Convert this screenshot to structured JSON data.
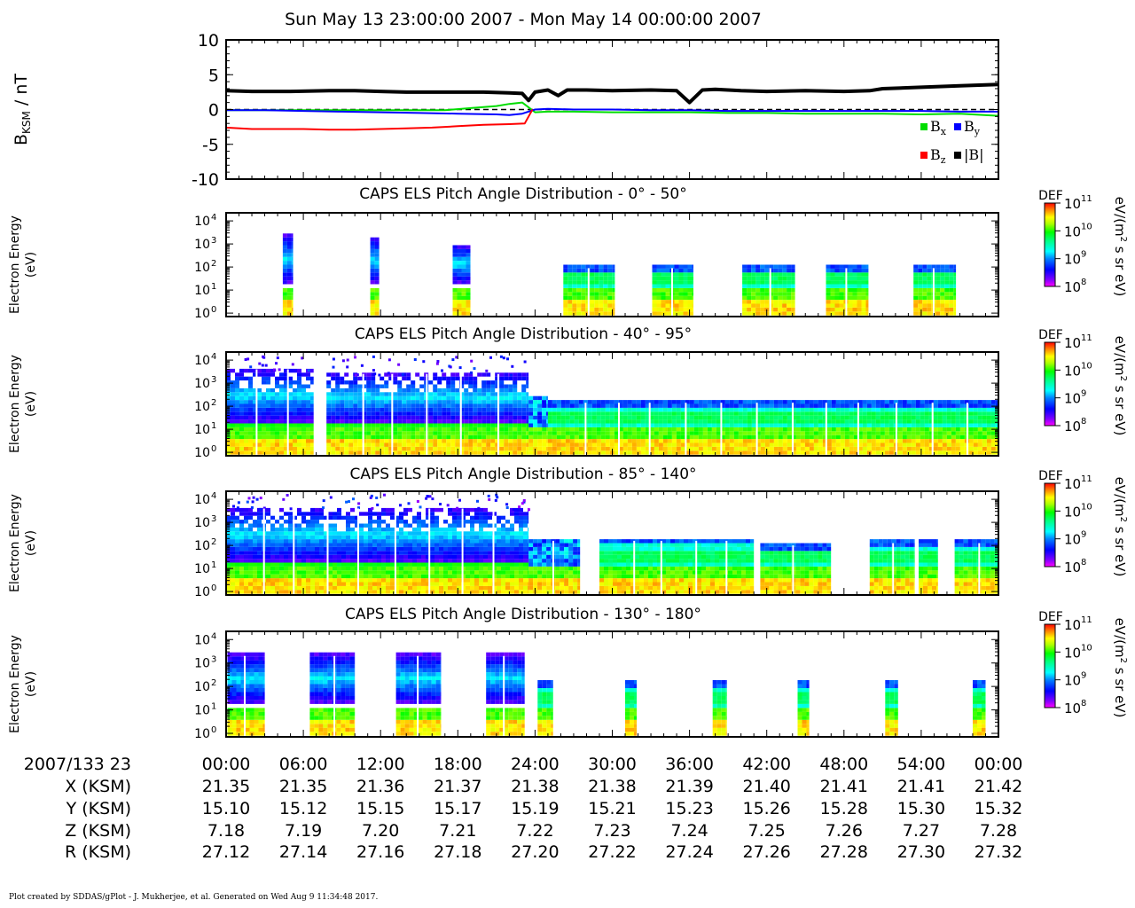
{
  "page_title": "Sun May 13 23:00:00 2007 - Mon May 14 00:00:00 2007",
  "footer": "Plot created by SDDAS/gPlot - J. Mukherjee, et al.  Generated on Wed Aug 9 11:34:48 2017.",
  "chart_data": [
    {
      "type": "line",
      "name": "magnetometer",
      "ylabel_main": "B",
      "ylabel_sub": "KSM",
      "ylabel_unit": " / nT",
      "ylim": [
        -10,
        10
      ],
      "yticks": [
        {
          "v": 10,
          "label": "10"
        },
        {
          "v": 5,
          "label": "5"
        },
        {
          "v": 0,
          "label": "0"
        },
        {
          "v": -5,
          "label": "-5"
        },
        {
          "v": -10,
          "label": "-10"
        }
      ],
      "xlim": [
        0,
        60
      ],
      "zero_line": true,
      "legend": [
        {
          "base": "B",
          "sub": "x",
          "color": "#00dd00"
        },
        {
          "base": "B",
          "sub": "y",
          "color": "#0000ff"
        },
        {
          "base": "B",
          "sub": "z",
          "color": "#ff0000"
        },
        {
          "base": "|B|",
          "sub": "",
          "color": "#000000"
        }
      ],
      "series": [
        {
          "sub": "x",
          "color": "#00dd00",
          "x": [
            0,
            3,
            6,
            9,
            12,
            15,
            17,
            19,
            21,
            22,
            23,
            24,
            25,
            27,
            30,
            33,
            36,
            39,
            42,
            45,
            48,
            51,
            54,
            57,
            60
          ],
          "y": [
            -0.1,
            -0.1,
            -0.1,
            -0.1,
            -0.1,
            -0.1,
            -0.1,
            0.2,
            0.5,
            0.8,
            1.0,
            -0.4,
            -0.3,
            -0.3,
            -0.4,
            -0.4,
            -0.4,
            -0.5,
            -0.5,
            -0.6,
            -0.6,
            -0.6,
            -0.7,
            -0.6,
            -0.9
          ]
        },
        {
          "sub": "y",
          "color": "#0000ff",
          "x": [
            0,
            3,
            6,
            9,
            12,
            15,
            18,
            21,
            22,
            23,
            24,
            25,
            27,
            30,
            33,
            36,
            39,
            42,
            45,
            48,
            51,
            54,
            57,
            60
          ],
          "y": [
            -0.1,
            -0.1,
            -0.2,
            -0.3,
            -0.4,
            -0.5,
            -0.6,
            -0.7,
            -0.8,
            -0.6,
            0.0,
            0.1,
            0.0,
            0.0,
            -0.1,
            -0.1,
            -0.2,
            -0.2,
            -0.2,
            -0.2,
            -0.2,
            -0.2,
            -0.3,
            -0.3
          ]
        },
        {
          "sub": "z",
          "color": "#ff0000",
          "x": [
            0,
            2,
            4,
            6,
            8,
            10,
            12,
            14,
            16,
            18,
            20,
            22,
            23.2,
            23.8
          ],
          "y": [
            -2.6,
            -2.8,
            -2.8,
            -2.8,
            -2.9,
            -2.9,
            -2.8,
            -2.7,
            -2.6,
            -2.4,
            -2.2,
            -2.1,
            -2.0,
            0.0
          ]
        },
        {
          "sub": "",
          "color": "#000000",
          "x": [
            0,
            2,
            5,
            8,
            10,
            12,
            14,
            16,
            18,
            20,
            22,
            23,
            23.5,
            24,
            25,
            25.8,
            26.5,
            28,
            30,
            33,
            35,
            36,
            37,
            38,
            40,
            42,
            45,
            48,
            50,
            51,
            54,
            57,
            60
          ],
          "y": [
            2.7,
            2.6,
            2.6,
            2.7,
            2.7,
            2.6,
            2.5,
            2.5,
            2.5,
            2.5,
            2.4,
            2.3,
            1.3,
            2.5,
            2.8,
            2.0,
            2.8,
            2.8,
            2.7,
            2.8,
            2.7,
            1.0,
            2.8,
            2.9,
            2.7,
            2.6,
            2.7,
            2.6,
            2.7,
            3.0,
            3.2,
            3.4,
            3.6
          ]
        }
      ]
    },
    {
      "type": "heatmap",
      "title": "CAPS ELS Pitch Angle Distribution - 0° - 50°",
      "ylabel": "Electron Energy",
      "yunit": "(eV)",
      "cbar_title": "DEF",
      "cbar_unit_base": "eV/(m",
      "cbar_unit_sup": "2",
      "cbar_unit_rest": " s sr eV)",
      "cbar_ticks": [
        "8",
        "9",
        "10",
        "11"
      ],
      "ytick_exps": [
        "0",
        "1",
        "2",
        "3",
        "4"
      ],
      "blocks": [
        {
          "t0": 4.4,
          "t1": 5.2,
          "emax_log": 3.3,
          "kind": "sparse"
        },
        {
          "t0": 11.2,
          "t1": 11.9,
          "emax_log": 3.2,
          "kind": "sparse"
        },
        {
          "t0": 17.6,
          "t1": 19.0,
          "emax_log": 2.9,
          "kind": "sparse"
        },
        {
          "t0": 26.2,
          "t1": 30.2,
          "emax_log": 1.95,
          "kind": "full"
        },
        {
          "t0": 33.1,
          "t1": 36.3,
          "emax_log": 1.95,
          "kind": "full"
        },
        {
          "t0": 40.1,
          "t1": 44.2,
          "emax_log": 1.95,
          "kind": "full"
        },
        {
          "t0": 46.6,
          "t1": 49.9,
          "emax_log": 1.95,
          "kind": "full"
        },
        {
          "t0": 53.4,
          "t1": 56.7,
          "emax_log": 1.95,
          "kind": "full"
        }
      ]
    },
    {
      "type": "heatmap",
      "title": "CAPS ELS Pitch Angle Distribution - 40° - 95°",
      "ylabel": "Electron Energy",
      "yunit": "(eV)",
      "cbar_title": "DEF",
      "cbar_unit_base": "eV/(m",
      "cbar_unit_sup": "2",
      "cbar_unit_rest": " s sr eV)",
      "cbar_ticks": [
        "8",
        "9",
        "10",
        "11"
      ],
      "ytick_exps": [
        "0",
        "1",
        "2",
        "3",
        "4"
      ],
      "blocks": [
        {
          "t0": 0.0,
          "t1": 6.8,
          "emax_log": 3.6,
          "kind": "hot"
        },
        {
          "t0": 7.8,
          "t1": 23.5,
          "emax_log": 3.4,
          "kind": "hot"
        },
        {
          "t0": 23.5,
          "t1": 25.0,
          "emax_log": 2.3,
          "kind": "trans"
        },
        {
          "t0": 25.0,
          "t1": 60.0,
          "emax_log": 2.15,
          "kind": "full"
        }
      ]
    },
    {
      "type": "heatmap",
      "title": "CAPS ELS Pitch Angle Distribution - 85° - 140°",
      "ylabel": "Electron Energy",
      "yunit": "(eV)",
      "cbar_title": "DEF",
      "cbar_unit_base": "eV/(m",
      "cbar_unit_sup": "2",
      "cbar_unit_rest": " s sr eV)",
      "cbar_ticks": [
        "8",
        "9",
        "10",
        "11"
      ],
      "ytick_exps": [
        "0",
        "1",
        "2",
        "3",
        "4"
      ],
      "blocks": [
        {
          "t0": 0.0,
          "t1": 23.5,
          "emax_log": 3.6,
          "kind": "hot"
        },
        {
          "t0": 23.5,
          "t1": 27.5,
          "emax_log": 2.2,
          "kind": "trans"
        },
        {
          "t0": 29.0,
          "t1": 41.0,
          "emax_log": 2.2,
          "kind": "full"
        },
        {
          "t0": 41.5,
          "t1": 47.0,
          "emax_log": 2.0,
          "kind": "full"
        },
        {
          "t0": 50.0,
          "t1": 53.5,
          "emax_log": 2.1,
          "kind": "full"
        },
        {
          "t0": 53.8,
          "t1": 55.3,
          "emax_log": 2.1,
          "kind": "full"
        },
        {
          "t0": 56.6,
          "t1": 60.0,
          "emax_log": 2.1,
          "kind": "full"
        }
      ]
    },
    {
      "type": "heatmap",
      "title": "CAPS ELS Pitch Angle Distribution - 130° - 180°",
      "ylabel": "Electron Energy",
      "yunit": "(eV)",
      "cbar_title": "DEF",
      "cbar_unit_base": "eV/(m",
      "cbar_unit_sup": "2",
      "cbar_unit_rest": " s sr eV)",
      "cbar_ticks": [
        "8",
        "9",
        "10",
        "11"
      ],
      "ytick_exps": [
        "0",
        "1",
        "2",
        "3",
        "4"
      ],
      "blocks": [
        {
          "t0": 0.1,
          "t1": 3.0,
          "emax_log": 3.3,
          "kind": "sparse"
        },
        {
          "t0": 6.5,
          "t1": 10.0,
          "emax_log": 3.3,
          "kind": "sparse"
        },
        {
          "t0": 13.2,
          "t1": 16.7,
          "emax_log": 3.3,
          "kind": "sparse"
        },
        {
          "t0": 20.2,
          "t1": 23.2,
          "emax_log": 3.3,
          "kind": "sparse"
        },
        {
          "t0": 24.2,
          "t1": 25.4,
          "emax_log": 2.1,
          "kind": "full"
        },
        {
          "t0": 31.0,
          "t1": 31.9,
          "emax_log": 2.1,
          "kind": "full"
        },
        {
          "t0": 37.8,
          "t1": 38.9,
          "emax_log": 2.1,
          "kind": "full"
        },
        {
          "t0": 44.4,
          "t1": 45.3,
          "emax_log": 2.1,
          "kind": "full"
        },
        {
          "t0": 51.2,
          "t1": 52.2,
          "emax_log": 2.1,
          "kind": "full"
        },
        {
          "t0": 58.0,
          "t1": 59.0,
          "emax_log": 2.1,
          "kind": "full"
        }
      ]
    }
  ],
  "time_axis": {
    "date_label": "2007/133 23",
    "labels": [
      "00:00",
      "06:00",
      "12:00",
      "18:00",
      "24:00",
      "30:00",
      "36:00",
      "42:00",
      "48:00",
      "54:00",
      "00:00"
    ]
  },
  "ephemeris": [
    {
      "label": "X (KSM)",
      "values": [
        "21.35",
        "21.35",
        "21.36",
        "21.37",
        "21.38",
        "21.38",
        "21.39",
        "21.40",
        "21.41",
        "21.41",
        "21.42"
      ]
    },
    {
      "label": "Y (KSM)",
      "values": [
        "15.10",
        "15.12",
        "15.15",
        "15.17",
        "15.19",
        "15.21",
        "15.23",
        "15.26",
        "15.28",
        "15.30",
        "15.32"
      ]
    },
    {
      "label": "Z (KSM)",
      "values": [
        "7.18",
        "7.19",
        "7.20",
        "7.21",
        "7.22",
        "7.23",
        "7.24",
        "7.25",
        "7.26",
        "7.27",
        "7.28"
      ]
    },
    {
      "label": "R (KSM)",
      "values": [
        "27.12",
        "27.14",
        "27.16",
        "27.18",
        "27.20",
        "27.22",
        "27.24",
        "27.26",
        "27.28",
        "27.30",
        "27.32"
      ]
    }
  ]
}
